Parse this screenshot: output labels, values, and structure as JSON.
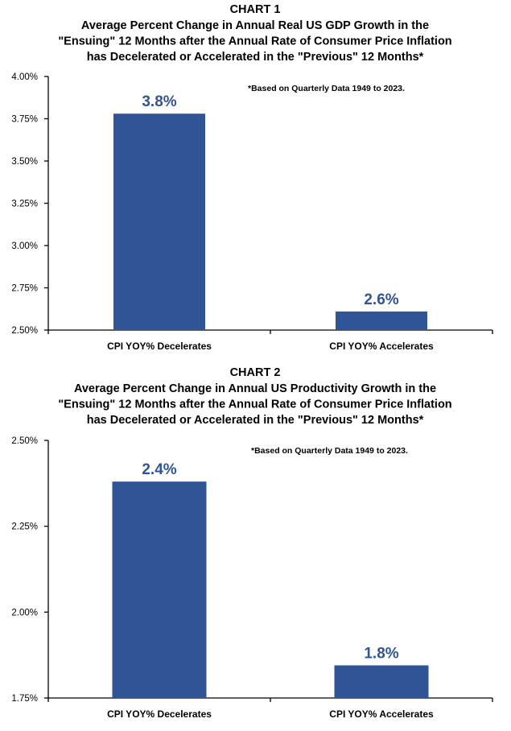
{
  "chart_data": [
    {
      "type": "bar",
      "heading": "CHART 1",
      "title_lines": [
        "Average Percent Change in Annual Real US GDP Growth in the",
        "\"Ensuing\" 12 Months after the Annual Rate of Consumer Price Inflation",
        "has Decelerated or Accelerated in the \"Previous\" 12 Months*"
      ],
      "note": "*Based on Quarterly Data 1949 to 2023.",
      "categories": [
        "CPI YOY% Decelerates",
        "CPI YOY% Accelerates"
      ],
      "values": [
        3.78,
        2.61
      ],
      "data_labels": [
        "3.8%",
        "2.6%"
      ],
      "yticks": [
        2.5,
        2.75,
        3.0,
        3.25,
        3.5,
        3.75,
        4.0
      ],
      "ytick_labels": [
        "2.50%",
        "2.75%",
        "3.00%",
        "3.25%",
        "3.50%",
        "3.75%",
        "4.00%"
      ],
      "ylim": [
        2.5,
        4.0
      ],
      "bar_color": "#2f5597",
      "label_color": "#2f5597"
    },
    {
      "type": "bar",
      "heading": "CHART 2",
      "title_lines": [
        "Average Percent Change in Annual US Productivity Growth in the",
        "\"Ensuing\" 12 Months after the Annual Rate of Consumer Price Inflation",
        "has Decelerated or Accelerated in the \"Previous\" 12 Months*"
      ],
      "note": "*Based on Quarterly Data 1949 to 2023.",
      "categories": [
        "CPI YOY% Decelerates",
        "CPI YOY% Accelerates"
      ],
      "values": [
        2.38,
        1.845
      ],
      "data_labels": [
        "2.4%",
        "1.8%"
      ],
      "yticks": [
        1.75,
        2.0,
        2.25,
        2.5
      ],
      "ytick_labels": [
        "1.75%",
        "2.00%",
        "2.25%",
        "2.50%"
      ],
      "ylim": [
        1.75,
        2.5
      ],
      "bar_color": "#2f5597",
      "label_color": "#2f5597"
    }
  ]
}
